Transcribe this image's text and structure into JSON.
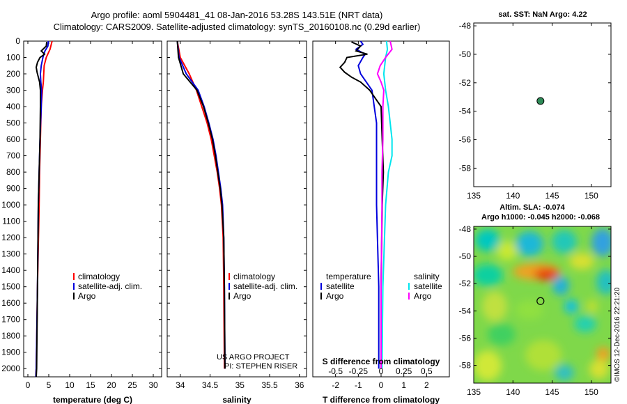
{
  "header": {
    "line1": "Argo profile: aoml 5904481_41 08-Jan-2016 53.28S 143.51E (NRT data)",
    "line2": "Climatology: CARS2009. Satellite-adjusted climatology: synTS_20160108.nc (0.29d earlier)"
  },
  "side_text": {
    "sst_title": "sat. SST: NaN Argo: 4.22",
    "sla_title": "Altim. SLA: -0.074",
    "sla_subtitle": "Argo h1000: -0.045 h2000: -0.068",
    "credit": "©IMOS 12-Dec-2016 22:21:20",
    "project_line1": "US ARGO PROJECT",
    "project_line2": "PI: STEPHEN RISER"
  },
  "colors": {
    "climatology": "#ff0000",
    "satellite": "#0000dd",
    "argo": "#000000",
    "sal_satellite": "#00e5ee",
    "sal_argo": "#ff00ff",
    "marker": "#2e8b57"
  },
  "legends": {
    "temp": [
      "climatology",
      "satellite-adj. clim.",
      "Argo"
    ],
    "sal": [
      "climatology",
      "satellite-adj. clim.",
      "Argo"
    ],
    "diff_left_title": "temperature",
    "diff_right_title": "salinity",
    "diff_items": [
      "satellite",
      "Argo"
    ]
  },
  "chart_data": [
    {
      "id": "temperature",
      "type": "line",
      "xlabel": "temperature (deg C)",
      "xlim": [
        -1,
        32
      ],
      "ylim": [
        0,
        2050
      ],
      "xticks": [
        0,
        5,
        10,
        15,
        20,
        25,
        30
      ],
      "yticks": [
        0,
        100,
        200,
        300,
        400,
        500,
        600,
        700,
        800,
        900,
        1000,
        1100,
        1200,
        1300,
        1400,
        1500,
        1600,
        1700,
        1800,
        1900,
        2000
      ],
      "series": [
        {
          "name": "climatology",
          "depth": [
            0,
            50,
            100,
            150,
            200,
            250,
            300,
            400,
            600,
            800,
            1000,
            1500,
            2000,
            2050
          ],
          "values": [
            5.8,
            5.3,
            4.4,
            3.9,
            3.8,
            3.7,
            3.5,
            3.2,
            3.0,
            2.8,
            2.7,
            2.3,
            2.0,
            1.9
          ]
        },
        {
          "name": "satellite-adj. clim.",
          "depth": [
            0,
            30,
            60,
            100,
            150,
            200,
            250,
            300,
            400,
            600,
            800,
            1000,
            1500,
            2000,
            2050
          ],
          "values": [
            4.9,
            4.8,
            4.1,
            3.6,
            3.2,
            3.0,
            3.1,
            3.3,
            3.2,
            2.9,
            2.7,
            2.5,
            2.3,
            2.0,
            1.9
          ]
        },
        {
          "name": "Argo",
          "depth": [
            5,
            30,
            60,
            80,
            100,
            130,
            160,
            190,
            220,
            250,
            300,
            400,
            600,
            800,
            1000,
            1500,
            2000,
            2050
          ],
          "values": [
            4.5,
            4.4,
            3.2,
            4.0,
            2.9,
            2.3,
            2.0,
            2.2,
            2.5,
            2.8,
            3.0,
            3.0,
            2.9,
            2.7,
            2.5,
            2.3,
            2.1,
            2.0
          ]
        }
      ]
    },
    {
      "id": "salinity",
      "type": "line",
      "xlabel": "salinity",
      "xlim": [
        33.78,
        36.12
      ],
      "ylim": [
        0,
        2050
      ],
      "xticks": [
        34,
        34.5,
        35,
        35.5,
        36
      ],
      "yticks": [
        0,
        100,
        200,
        300,
        400,
        500,
        600,
        700,
        800,
        900,
        1000,
        1100,
        1200,
        1300,
        1400,
        1500,
        1600,
        1700,
        1800,
        1900,
        2000
      ],
      "series": [
        {
          "name": "climatology",
          "depth": [
            0,
            100,
            200,
            300,
            400,
            500,
            600,
            700,
            800,
            900,
            1000,
            1200,
            1500,
            2000
          ],
          "values": [
            33.95,
            34.0,
            34.15,
            34.27,
            34.36,
            34.45,
            34.52,
            34.57,
            34.62,
            34.66,
            34.69,
            34.72,
            34.73,
            34.74
          ]
        },
        {
          "name": "satellite-adj. clim.",
          "depth": [
            0,
            100,
            200,
            300,
            400,
            500,
            600,
            700,
            800,
            900,
            1000,
            1200,
            1500,
            2000
          ],
          "values": [
            33.95,
            33.98,
            34.1,
            34.3,
            34.4,
            34.48,
            34.55,
            34.6,
            34.64,
            34.68,
            34.71,
            34.73,
            34.74,
            34.75
          ]
        },
        {
          "name": "Argo",
          "depth": [
            0,
            100,
            200,
            300,
            400,
            500,
            600,
            700,
            800,
            900,
            1000,
            1200,
            1500,
            2000
          ],
          "values": [
            33.95,
            33.97,
            34.05,
            34.28,
            34.39,
            34.47,
            34.54,
            34.59,
            34.63,
            34.67,
            34.7,
            34.73,
            34.74,
            34.75
          ]
        }
      ]
    },
    {
      "id": "difference",
      "type": "line",
      "xlabel": "T difference from climatology",
      "xlabel_top": "S difference from climatology",
      "xlim": [
        -3,
        3
      ],
      "ylim": [
        0,
        2050
      ],
      "xticks": [
        -2,
        -1,
        0,
        1,
        2
      ],
      "xticks_s": [
        -0.5,
        -0.25,
        0,
        0.25,
        0.5
      ],
      "series": [
        {
          "name": "temperature satellite",
          "depth": [
            0,
            20,
            50,
            80,
            100,
            150,
            200,
            300,
            500,
            1000,
            1500,
            2000
          ],
          "values": [
            -0.9,
            -0.8,
            -1.1,
            -0.7,
            -0.8,
            -1.0,
            -0.9,
            -0.4,
            -0.2,
            -0.2,
            -0.1,
            -0.1
          ]
        },
        {
          "name": "temperature Argo",
          "depth": [
            5,
            30,
            60,
            80,
            100,
            130,
            160,
            190,
            220,
            250,
            300,
            400,
            600,
            800,
            1000,
            1500,
            2000
          ],
          "values": [
            -1.3,
            -0.9,
            -1.1,
            -0.6,
            -1.5,
            -1.6,
            -1.8,
            -1.6,
            -1.3,
            -0.9,
            -0.5,
            0.0,
            0.05,
            0.1,
            0.05,
            0.0,
            0.0
          ]
        },
        {
          "name": "salinity satellite",
          "depth": [
            0,
            50,
            100,
            200,
            300,
            400,
            500,
            600,
            700,
            800,
            1000,
            1500,
            2000
          ],
          "values": [
            0.06,
            0.07,
            0.05,
            0.03,
            0.05,
            0.08,
            0.1,
            0.12,
            0.12,
            0.08,
            0.05,
            0.02,
            0.01
          ]
        },
        {
          "name": "salinity Argo",
          "depth": [
            0,
            50,
            100,
            150,
            200,
            250,
            300,
            400,
            600,
            800,
            1000,
            1500,
            2000
          ],
          "values": [
            0.1,
            0.12,
            0.05,
            -0.01,
            -0.04,
            0.0,
            0.03,
            0.02,
            0.02,
            0.01,
            0.01,
            0.0,
            0.0
          ]
        }
      ]
    },
    {
      "id": "sst_map",
      "type": "scatter",
      "title": "sat. SST: NaN Argo: 4.22",
      "xlim": [
        135,
        152.5
      ],
      "ylim": [
        -59.3,
        -47.8
      ],
      "xticks": [
        135,
        140,
        145,
        150
      ],
      "yticks": [
        -48,
        -50,
        -52,
        -54,
        -56,
        -58
      ],
      "points": [
        {
          "lon": 143.51,
          "lat": -53.28
        }
      ]
    },
    {
      "id": "sla_map",
      "type": "heatmap",
      "title": "Altim. SLA: -0.074",
      "xlim": [
        135,
        152.5
      ],
      "ylim": [
        -59.3,
        -47.8
      ],
      "xticks": [
        135,
        140,
        145,
        150
      ],
      "yticks": [
        -48,
        -50,
        -52,
        -54,
        -56,
        -58
      ],
      "points": [
        {
          "lon": 143.51,
          "lat": -53.28
        }
      ]
    }
  ]
}
